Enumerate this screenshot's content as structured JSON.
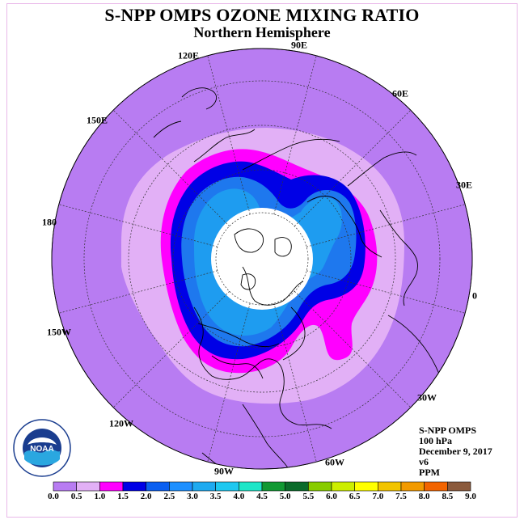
{
  "title": "S-NPP OMPS OZONE MIXING RATIO",
  "subtitle": "Northern Hemisphere",
  "longitudes": [
    "90E",
    "60E",
    "30E",
    "0",
    "30W",
    "60W",
    "90W",
    "120W",
    "150W",
    "180",
    "150E",
    "120E"
  ],
  "info": {
    "instrument": "S-NPP OMPS",
    "level": "100 hPa",
    "date": "December 9, 2017",
    "version": "v6",
    "units": "PPM"
  },
  "logo": {
    "text": "NOAA",
    "ring_text": "NATIONAL OCEANIC AND ATMOSPHERIC ADMINISTRATION · U.S. DEPARTMENT OF COMMERCE"
  },
  "colorbar": {
    "ticks": [
      "0.0",
      "0.5",
      "1.0",
      "1.5",
      "2.0",
      "2.5",
      "3.0",
      "3.5",
      "4.0",
      "4.5",
      "5.0",
      "5.5",
      "6.0",
      "6.5",
      "7.0",
      "7.5",
      "8.0",
      "8.5",
      "9.0"
    ],
    "colors": [
      "#b87cf2",
      "#e2b0f6",
      "#ff00ff",
      "#0000e6",
      "#0a5ff0",
      "#1e90ff",
      "#1eaaf0",
      "#1ec8f0",
      "#1ee6c8",
      "#119933",
      "#0a6b2a",
      "#88cc00",
      "#ccee00",
      "#ffff00",
      "#f2c400",
      "#f29a00",
      "#f26400",
      "#f20000",
      "#8b5a3c"
    ]
  },
  "colors": {
    "background_ozone": "#b87cf2",
    "light_band": "#e2b0f6",
    "magenta_band": "#ff00ff",
    "deep_blue_band": "#0000e6",
    "mid_blue_band": "#1e78ee",
    "light_blue_band": "#1e9cf0",
    "frame": "#e9b8e9"
  }
}
